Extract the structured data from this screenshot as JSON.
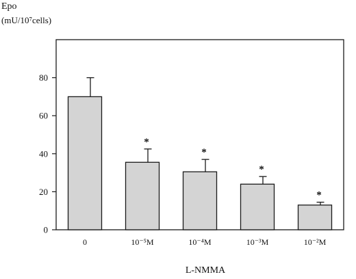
{
  "chart_data": {
    "type": "bar",
    "title": "",
    "ylabel_line1": "Epo",
    "ylabel_line2": "(mU/10⁷cells)",
    "xlabel": "L-NMMA",
    "categories": [
      "0",
      "10⁻⁵M",
      "10⁻⁴M",
      "10⁻³M",
      "10⁻²M"
    ],
    "values": [
      70,
      35.5,
      30.5,
      24,
      13
    ],
    "errors": [
      10,
      7,
      6.5,
      4,
      1.5
    ],
    "significance": [
      "",
      "*",
      "*",
      "*",
      "*"
    ],
    "ylim": [
      0,
      100
    ],
    "yticks": [
      0,
      20,
      40,
      60,
      80
    ],
    "grid": false,
    "bar_fill": "#d4d4d4",
    "bar_stroke": "#1a1a1a"
  }
}
